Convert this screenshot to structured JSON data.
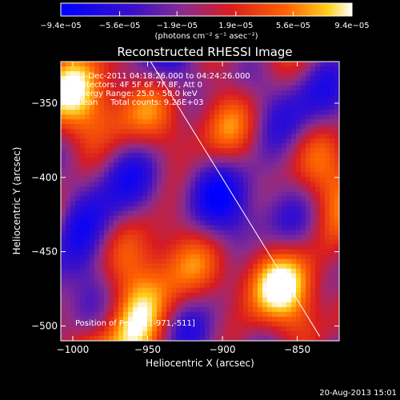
{
  "chart_data": {
    "type": "heatmap",
    "title": "Reconstructed RHESSI Image",
    "xlabel": "Heliocentric X (arcsec)",
    "ylabel": "Heliocentric Y (arcsec)",
    "xlim": [
      -1008,
      -822
    ],
    "ylim": [
      -510,
      -322
    ],
    "x_ticks": [
      -1000,
      -950,
      -900,
      -850
    ],
    "x_tick_labels": [
      "−1000",
      "−950",
      "−900",
      "−850"
    ],
    "y_ticks": [
      -350,
      -400,
      -450,
      -500
    ],
    "y_tick_labels": [
      "−350",
      "−400",
      "−450",
      "−500"
    ],
    "colorbar": {
      "min": -9.4e-05,
      "max": 9.4e-05,
      "tick_values": [
        -9.4e-05,
        -5.6e-05,
        -1.9e-05,
        1.9e-05,
        5.6e-05,
        9.4e-05
      ],
      "tick_labels": [
        "−9.4e−05",
        "−5.6e−05",
        "−1.9e−05",
        "1.9e−05",
        "5.6e−05",
        "9.4e−05"
      ],
      "unit_label": "(photons cm⁻² s⁻¹ asec⁻²)"
    },
    "annotations": {
      "time_range": "28-Dec-2011 04:18:26.000 to 04:24:26.000",
      "detectors": "Detectors: 4F 5F 6F 7F 8F, Att 0",
      "energy_range": "Energy Range: 25.0 - 50.0 keV",
      "clean_counts": "Clean     Total counts: 9.26E+03",
      "peak": "Position of Peak = [-971,-511]"
    },
    "limb_line": {
      "x": [
        -948,
        -835
      ],
      "y": [
        -322,
        -507
      ]
    },
    "grid": false
  },
  "footer": {
    "date": "20-Aug-2013 15:01"
  }
}
